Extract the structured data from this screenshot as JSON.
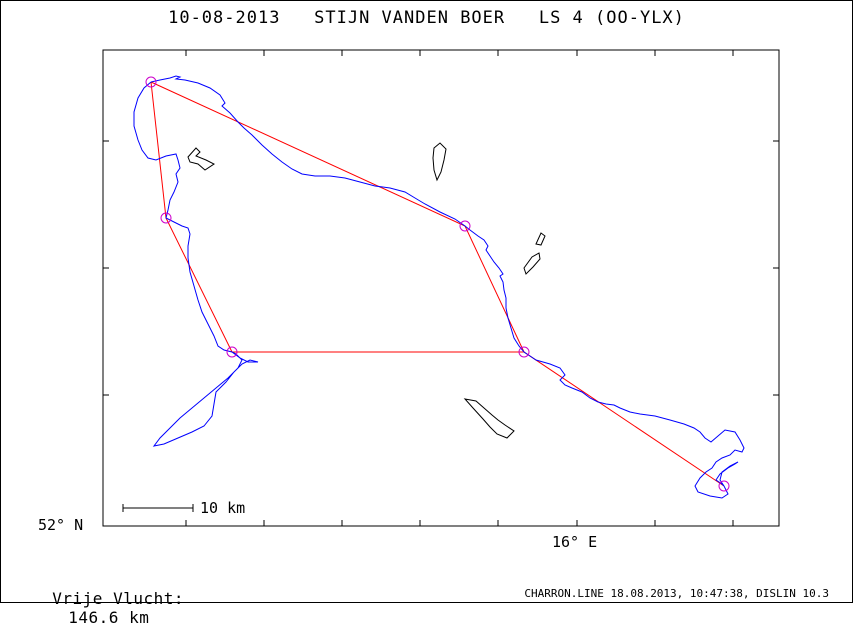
{
  "title": "10-08-2013   STIJN VANDEN BOER   LS 4 (OO-YLX)",
  "axis": {
    "lat_label": "52° N",
    "lon_label": "16° E"
  },
  "scale_bar": {
    "label": "10 km"
  },
  "flight": {
    "label": "Vrije Vlucht:",
    "distance": "146.6 km"
  },
  "footer": "CHARRON.LINE 18.08.2013, 10:47:38, DISLIN 10.3",
  "colors": {
    "track": "#0000ff",
    "task_line": "#ff0000",
    "turnpoint": "#cc00cc",
    "lakes": "#000000"
  }
}
